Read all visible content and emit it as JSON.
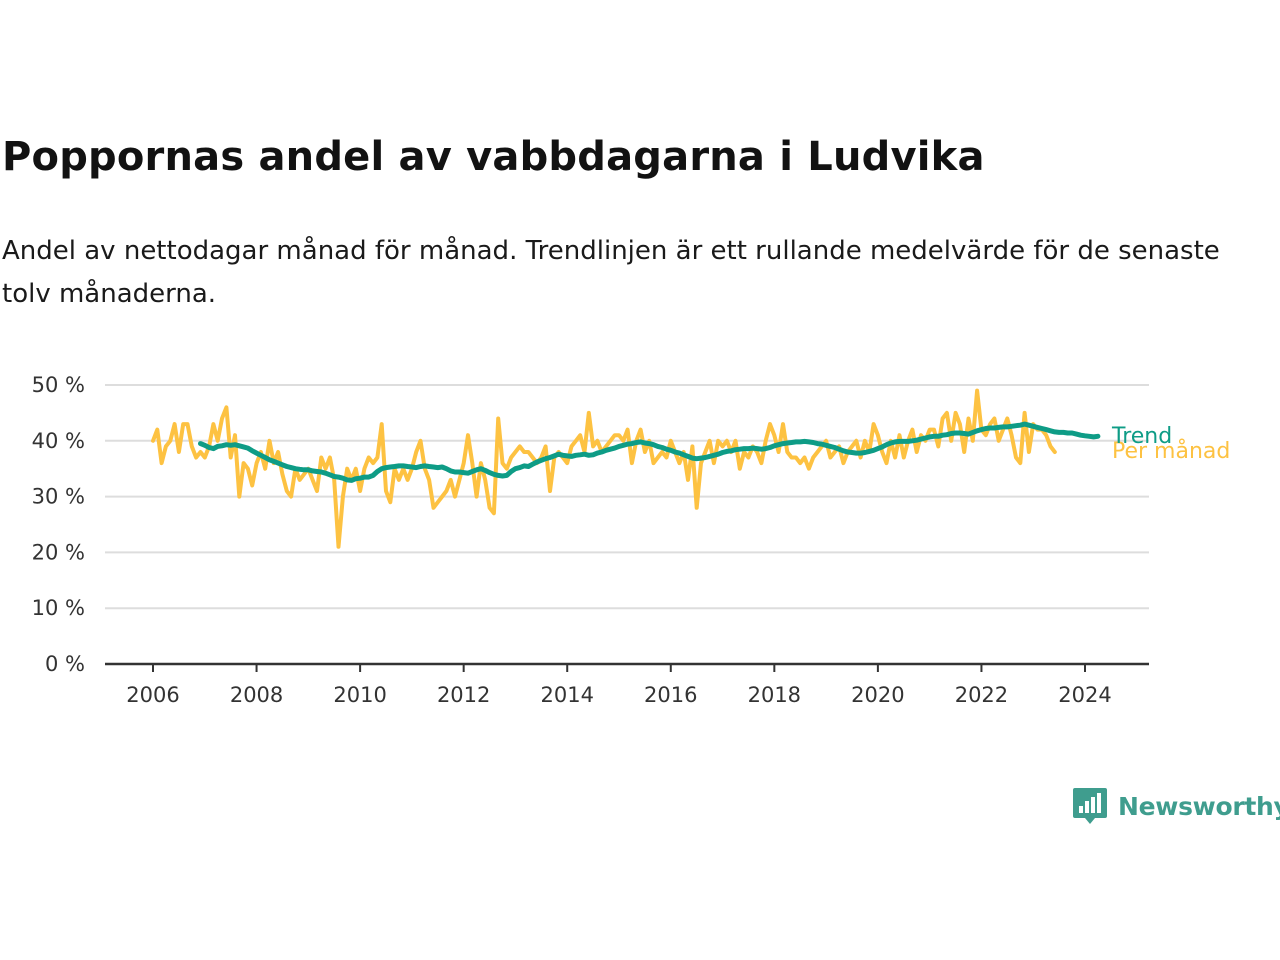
{
  "title": "Poppornas andel av vabbdagarna i Ludvika",
  "subtitle": "Andel av nettodagar månad för månad. Trendlinjen är ett rullande medelvärde för de senaste tolv månaderna.",
  "brand": {
    "name": "Newsworthy",
    "icon": "newsworthy-logo-icon"
  },
  "colors": {
    "monthly": "#fdc242",
    "trend": "#0e9c86",
    "grid": "#dddddd",
    "axis": "#333333"
  },
  "chart_data": {
    "type": "line",
    "title": "Poppornas andel av vabbdagarna i Ludvika",
    "xlabel": "",
    "ylabel": "",
    "xlim": [
      2005.7,
      2025.2
    ],
    "ylim": [
      0,
      50
    ],
    "grid": true,
    "x_ticks": [
      2006,
      2008,
      2010,
      2012,
      2014,
      2016,
      2018,
      2020,
      2022,
      2024
    ],
    "x_tick_labels": [
      "2006",
      "2008",
      "2010",
      "2012",
      "2014",
      "2016",
      "2018",
      "2020",
      "2022",
      "2024"
    ],
    "y_ticks": [
      0,
      10,
      20,
      30,
      40,
      50
    ],
    "y_tick_labels": [
      "0 %",
      "10 %",
      "20 %",
      "30 %",
      "40 %",
      "50 %"
    ],
    "legend": "direct labels at line ends (right)",
    "series": [
      {
        "name": "Per månad",
        "start": "2006-01",
        "step": "month",
        "values": [
          40,
          42,
          36,
          39,
          40,
          43,
          38,
          43,
          43,
          39,
          37,
          38,
          37,
          39,
          43,
          40,
          44,
          46,
          37,
          41,
          30,
          36,
          35,
          32,
          36,
          38,
          35,
          40,
          36,
          38,
          34,
          31,
          30,
          35,
          33,
          34,
          35,
          33,
          31,
          37,
          35,
          37,
          33,
          21,
          30,
          35,
          33,
          35,
          31,
          35,
          37,
          36,
          37,
          43,
          31,
          29,
          35,
          33,
          35,
          33,
          35,
          38,
          40,
          35,
          33,
          28,
          29,
          30,
          31,
          33,
          30,
          33,
          36,
          41,
          36,
          30,
          36,
          33,
          28,
          27,
          44,
          36,
          35,
          37,
          38,
          39,
          38,
          38,
          37,
          36,
          37,
          39,
          31,
          37,
          38,
          37,
          36,
          39,
          40,
          41,
          38,
          45,
          39,
          40,
          38,
          39,
          40,
          41,
          41,
          40,
          42,
          36,
          40,
          42,
          38,
          40,
          36,
          37,
          38,
          37,
          40,
          38,
          36,
          38,
          33,
          39,
          28,
          36,
          38,
          40,
          36,
          40,
          39,
          40,
          38,
          40,
          35,
          38,
          37,
          39,
          38,
          36,
          40,
          43,
          41,
          38,
          43,
          38,
          37,
          37,
          36,
          37,
          35,
          37,
          38,
          39,
          40,
          37,
          38,
          39,
          36,
          38,
          39,
          40,
          37,
          40,
          38,
          43,
          41,
          38,
          36,
          40,
          37,
          41,
          37,
          40,
          42,
          38,
          41,
          40,
          42,
          42,
          39,
          44,
          45,
          40,
          45,
          43,
          38,
          44,
          40,
          49,
          42,
          41,
          43,
          44,
          40,
          42,
          44,
          41,
          37,
          36,
          45,
          38,
          43,
          42,
          42,
          41,
          39,
          38
        ]
      },
      {
        "name": "Trend",
        "start": "2006-12",
        "step": "month",
        "values": [
          39.5,
          39.2,
          38.8,
          38.6,
          39.0,
          39.1,
          39.3,
          39.2,
          39.3,
          39.1,
          38.9,
          38.7,
          38.2,
          37.8,
          37.4,
          37.0,
          36.6,
          36.3,
          36.0,
          35.7,
          35.4,
          35.2,
          35.0,
          34.9,
          34.8,
          34.8,
          34.6,
          34.5,
          34.4,
          34.2,
          33.9,
          33.6,
          33.5,
          33.3,
          33.0,
          32.9,
          33.2,
          33.3,
          33.5,
          33.5,
          33.8,
          34.5,
          35.0,
          35.2,
          35.3,
          35.4,
          35.5,
          35.5,
          35.4,
          35.3,
          35.2,
          35.4,
          35.5,
          35.4,
          35.3,
          35.2,
          35.3,
          35.0,
          34.6,
          34.4,
          34.4,
          34.3,
          34.2,
          34.5,
          34.8,
          35.0,
          34.7,
          34.3,
          34.0,
          33.8,
          33.7,
          33.8,
          34.5,
          35.0,
          35.2,
          35.5,
          35.4,
          35.8,
          36.2,
          36.5,
          36.8,
          37.0,
          37.3,
          37.6,
          37.4,
          37.3,
          37.2,
          37.4,
          37.5,
          37.6,
          37.4,
          37.5,
          37.8,
          38.0,
          38.3,
          38.5,
          38.7,
          39.0,
          39.2,
          39.4,
          39.5,
          39.7,
          39.8,
          39.6,
          39.5,
          39.3,
          39.0,
          38.8,
          38.5,
          38.3,
          38.0,
          37.8,
          37.5,
          37.2,
          36.9,
          36.8,
          36.9,
          37.0,
          37.2,
          37.4,
          37.6,
          37.9,
          38.1,
          38.2,
          38.4,
          38.5,
          38.6,
          38.6,
          38.7,
          38.6,
          38.5,
          38.6,
          38.8,
          39.1,
          39.3,
          39.5,
          39.6,
          39.7,
          39.8,
          39.8,
          39.9,
          39.8,
          39.7,
          39.5,
          39.4,
          39.2,
          39.0,
          38.8,
          38.5,
          38.2,
          38.0,
          37.9,
          37.8,
          37.8,
          37.9,
          38.1,
          38.3,
          38.6,
          38.9,
          39.3,
          39.6,
          39.8,
          39.9,
          39.9,
          39.9,
          40.0,
          40.1,
          40.3,
          40.5,
          40.7,
          40.8,
          40.8,
          41.0,
          41.1,
          41.3,
          41.4,
          41.4,
          41.3,
          41.2,
          41.5,
          41.8,
          42.0,
          42.2,
          42.3,
          42.3,
          42.4,
          42.5,
          42.5,
          42.6,
          42.7,
          42.8,
          43.0,
          42.8,
          42.6,
          42.4,
          42.2,
          42.0,
          41.8,
          41.6,
          41.5,
          41.5,
          41.4,
          41.4,
          41.2,
          41.0,
          40.9,
          40.8,
          40.7,
          40.8
        ]
      }
    ]
  }
}
